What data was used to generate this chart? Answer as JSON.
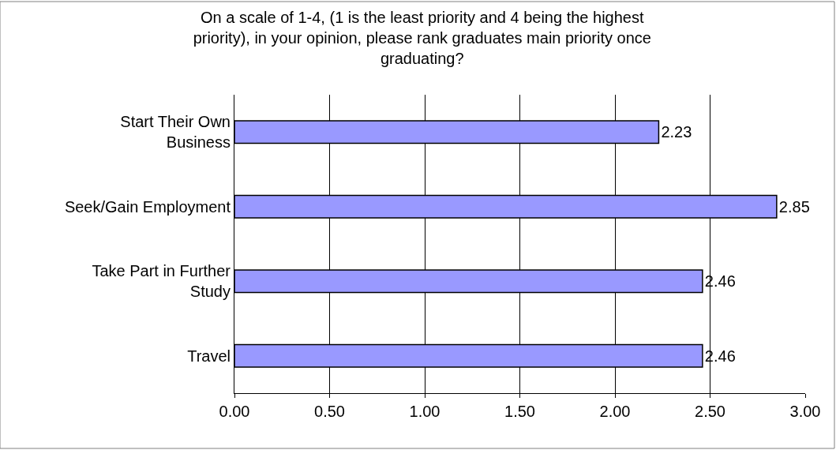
{
  "chart_data": {
    "type": "bar",
    "orientation": "horizontal",
    "title": "On a scale of 1-4, (1 is the least priority and 4 being the highest priority), in your opinion, please rank graduates main priority once graduating?",
    "categories": [
      "Start Their Own Business",
      "Seek/Gain Employment",
      "Take Part in Further Study",
      "Travel"
    ],
    "values": [
      2.23,
      2.85,
      2.46,
      2.46
    ],
    "color": "#9999ff",
    "data_labels": true,
    "xlim": [
      0,
      3
    ],
    "xticks": [
      {
        "value": 0,
        "label": "0.00"
      },
      {
        "value": 0.5,
        "label": "0.50"
      },
      {
        "value": 1,
        "label": "1.00"
      },
      {
        "value": 1.5,
        "label": "1.50"
      },
      {
        "value": 2,
        "label": "2.00"
      },
      {
        "value": 2.5,
        "label": "2.50"
      },
      {
        "value": 3,
        "label": "3.00"
      }
    ],
    "grid": "x"
  }
}
